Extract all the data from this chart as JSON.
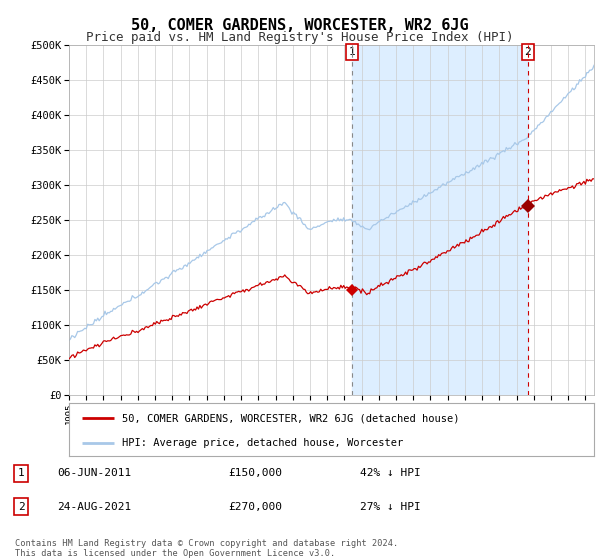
{
  "title": "50, COMER GARDENS, WORCESTER, WR2 6JG",
  "subtitle": "Price paid vs. HM Land Registry's House Price Index (HPI)",
  "ylim": [
    0,
    500000
  ],
  "xlim_start": 1995.0,
  "xlim_end": 2025.5,
  "hpi_color": "#a8c8e8",
  "price_color": "#cc0000",
  "vline1_x": 2011.44,
  "vline2_x": 2021.65,
  "marker1_x": 2011.44,
  "marker1_y": 150000,
  "marker2_x": 2021.65,
  "marker2_y": 270000,
  "annotation1_label": "1",
  "annotation2_label": "2",
  "shade_color": "#ddeeff",
  "legend_price_label": "50, COMER GARDENS, WORCESTER, WR2 6JG (detached house)",
  "legend_hpi_label": "HPI: Average price, detached house, Worcester",
  "table_row1": [
    "1",
    "06-JUN-2011",
    "£150,000",
    "42% ↓ HPI"
  ],
  "table_row2": [
    "2",
    "24-AUG-2021",
    "£270,000",
    "27% ↓ HPI"
  ],
  "footer": "Contains HM Land Registry data © Crown copyright and database right 2024.\nThis data is licensed under the Open Government Licence v3.0.",
  "background_color": "#ffffff",
  "grid_color": "#cccccc",
  "ytick_labels": [
    "£0",
    "£50K",
    "£100K",
    "£150K",
    "£200K",
    "£250K",
    "£300K",
    "£350K",
    "£400K",
    "£450K",
    "£500K"
  ],
  "ytick_values": [
    0,
    50000,
    100000,
    150000,
    200000,
    250000,
    300000,
    350000,
    400000,
    450000,
    500000
  ],
  "title_fontsize": 11,
  "subtitle_fontsize": 9
}
